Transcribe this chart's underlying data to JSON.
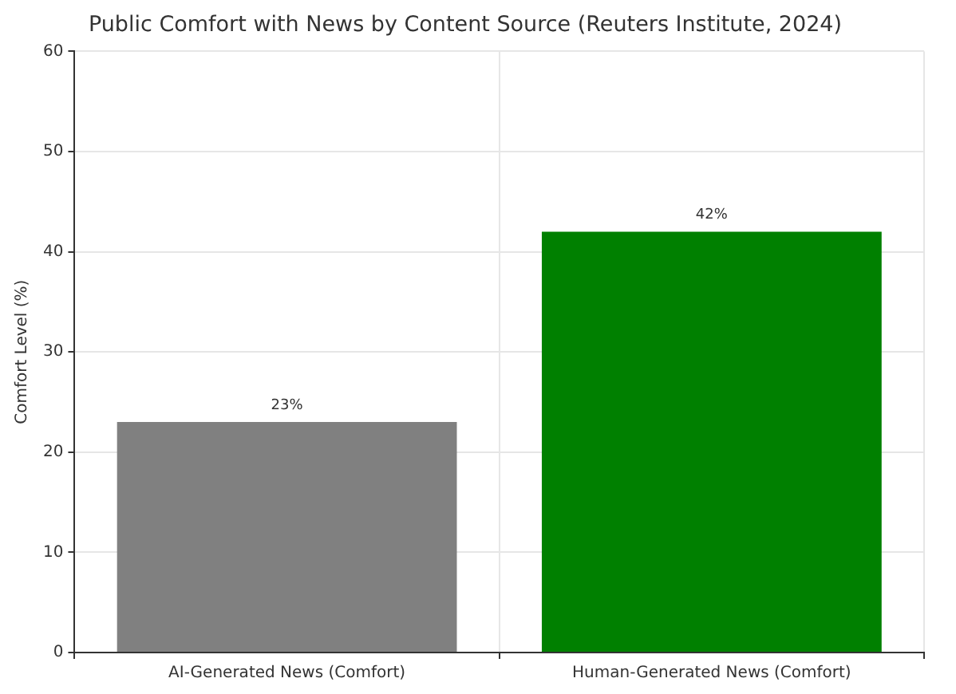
{
  "chart_data": {
    "type": "bar",
    "title": "Public Comfort with News by Content Source (Reuters Institute, 2024)",
    "ylabel": "Comfort Level (%)",
    "categories": [
      "AI-Generated News (Comfort)",
      "Human-Generated News (Comfort)"
    ],
    "values": [
      23,
      42
    ],
    "colors": [
      "#808080",
      "#008000"
    ],
    "value_labels": [
      "23%",
      "42%"
    ],
    "ylim": [
      0,
      60
    ],
    "yticks": [
      0,
      10,
      20,
      30,
      40,
      50,
      60
    ],
    "grid": true
  }
}
